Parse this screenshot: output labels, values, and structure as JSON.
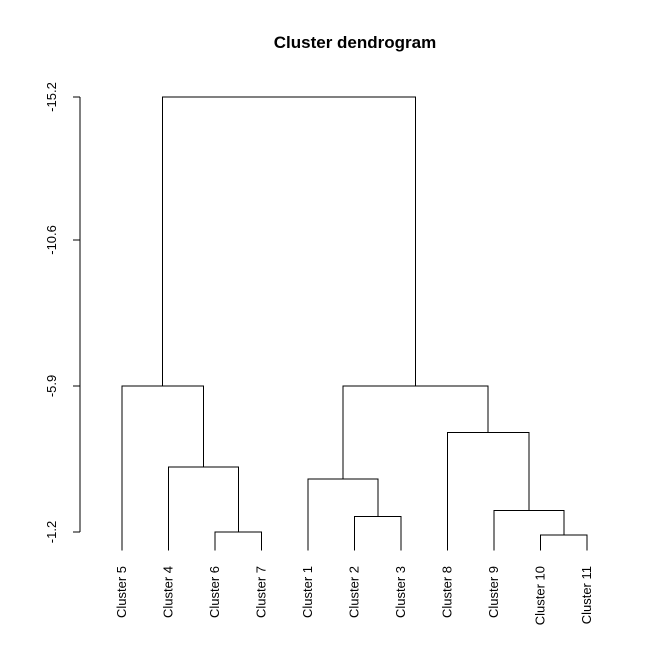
{
  "chart_data": {
    "type": "dendrogram",
    "title": "Cluster dendrogram",
    "xlabel": "",
    "ylabel": "",
    "y_axis": {
      "ticks": [
        -15.2,
        -10.6,
        -5.9,
        -1.2
      ],
      "tick_labels": [
        "-15.2",
        "-10.6",
        "-5.9",
        "-1.2"
      ],
      "range": [
        -15.2,
        -1.2
      ]
    },
    "grid": false,
    "leaves": [
      "Cluster 5",
      "Cluster 4",
      "Cluster 6",
      "Cluster 7",
      "Cluster 1",
      "Cluster 2",
      "Cluster 3",
      "Cluster 8",
      "Cluster 9",
      "Cluster 10",
      "Cluster 11"
    ],
    "leaf_base": -0.6,
    "merges": [
      {
        "id": "m1",
        "children": [
          "Cluster 10",
          "Cluster 11"
        ],
        "height": -1.1
      },
      {
        "id": "m2",
        "children": [
          "Cluster 6",
          "Cluster 7"
        ],
        "height": -1.2
      },
      {
        "id": "m3",
        "children": [
          "Cluster 2",
          "Cluster 3"
        ],
        "height": -1.7
      },
      {
        "id": "m4",
        "children": [
          "Cluster 9",
          "m1"
        ],
        "height": -1.9
      },
      {
        "id": "m5",
        "children": [
          "Cluster 1",
          "m3"
        ],
        "height": -2.9
      },
      {
        "id": "m6",
        "children": [
          "Cluster 4",
          "m2"
        ],
        "height": -3.3
      },
      {
        "id": "m7",
        "children": [
          "Cluster 8",
          "m4"
        ],
        "height": -4.4
      },
      {
        "id": "m8",
        "children": [
          "m5",
          "m7"
        ],
        "height": -5.9
      },
      {
        "id": "m9",
        "children": [
          "Cluster 5",
          "m6"
        ],
        "height": -5.9
      },
      {
        "id": "m10",
        "children": [
          "m9",
          "m8"
        ],
        "height": -15.2
      }
    ]
  }
}
